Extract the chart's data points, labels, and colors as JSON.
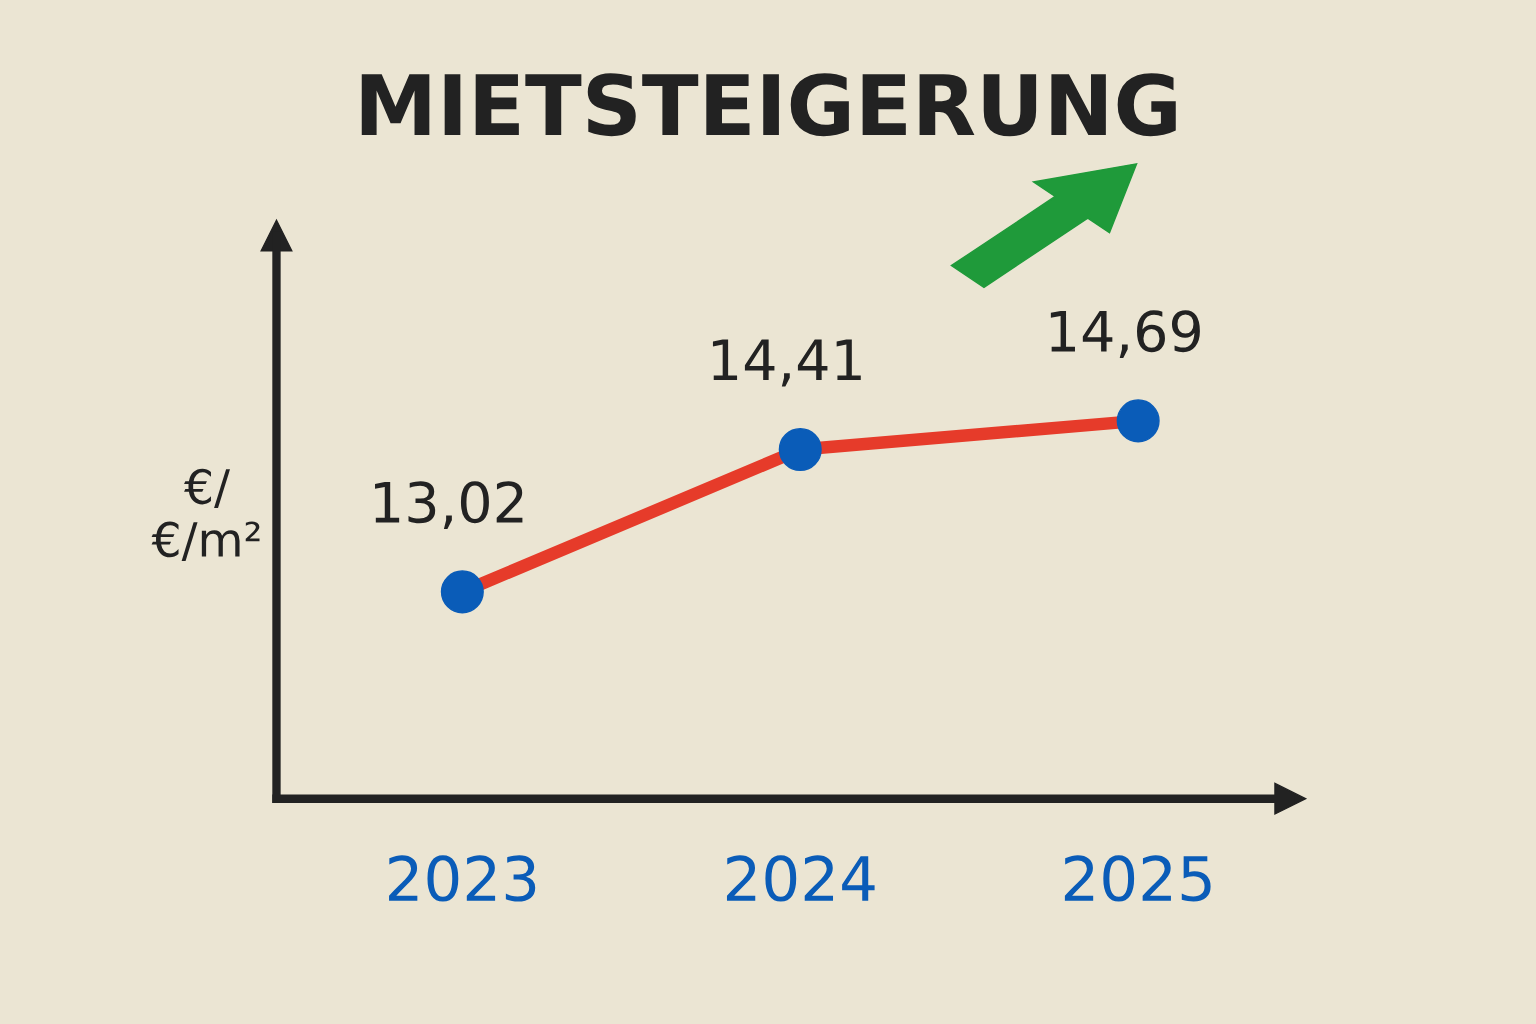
{
  "chart_data": {
    "type": "line",
    "title": "MIETSTEIGERUNG",
    "ylabel": "€/\n€/m²",
    "categories": [
      "2023",
      "2024",
      "2025"
    ],
    "series": [
      {
        "color": "#e63b2a",
        "values": [
          13.02,
          14.41,
          14.69
        ],
        "value_labels": [
          "13,02",
          "14,41",
          "14,69"
        ]
      }
    ],
    "ylim": [
      11,
      16.5
    ],
    "marker": "circle",
    "line_style": "solid",
    "grid": false,
    "legend": false,
    "tick_labels": "x"
  }
}
